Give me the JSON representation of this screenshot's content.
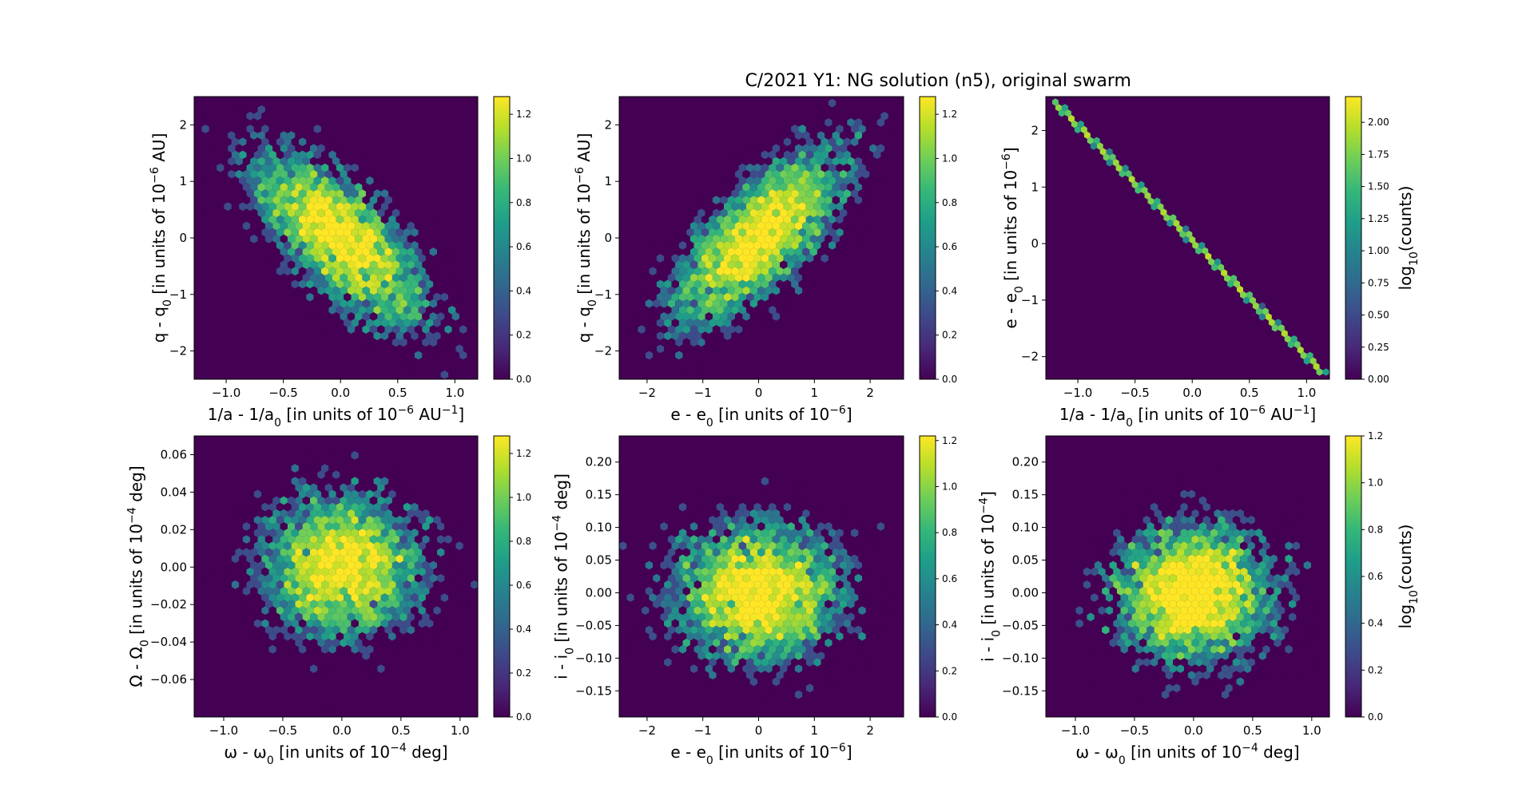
{
  "figure": {
    "title": "C/2021 Y1: NG solution (n5), original swarm",
    "colormap": [
      "#440154",
      "#482878",
      "#3e4989",
      "#31688e",
      "#26828e",
      "#1f9e89",
      "#35b779",
      "#6ece58",
      "#b5de2b",
      "#fde725"
    ],
    "background_color": "#440154",
    "frame_color": "#000000"
  },
  "chart_data": [
    {
      "type": "heatmap",
      "subtype": "hexbin",
      "xlabel": "1/a - 1/a0 [in units of 10^-6 AU^-1]",
      "xlabel_parts": [
        "1/a - 1/a",
        "0",
        " [in units of 10",
        "−6",
        " AU",
        "−1",
        "]"
      ],
      "ylabel_parts": [
        "q - q",
        "0",
        " [in units of 10",
        "−6",
        " AU]"
      ],
      "xlim": [
        -1.28,
        1.2
      ],
      "ylim": [
        -2.5,
        2.5
      ],
      "xticks": [
        -1.0,
        -0.5,
        0.0,
        0.5,
        1.0
      ],
      "xtick_labels": [
        "−1.0",
        "−0.5",
        "0.0",
        "0.5",
        "1.0"
      ],
      "yticks": [
        -2,
        -1,
        0,
        1,
        2
      ],
      "ytick_labels": [
        "−2",
        "−1",
        "0",
        "1",
        "2"
      ],
      "cmax": 1.28,
      "colorbar_ticks": [
        0.0,
        0.2,
        0.4,
        0.6,
        0.8,
        1.0,
        1.2
      ],
      "colorbar_tick_labels": [
        "0.0",
        "0.2",
        "0.4",
        "0.6",
        "0.8",
        "1.0",
        "1.2"
      ],
      "colorbar_label": "",
      "distribution": {
        "sx": 0.4,
        "sy": 0.8,
        "rho": -0.72,
        "n": 4200
      }
    },
    {
      "type": "heatmap",
      "subtype": "hexbin",
      "xlabel": "e - e0 [in units of 10^-6]",
      "xlabel_parts": [
        "e - e",
        "0",
        " [in units of 10",
        "−6",
        "]"
      ],
      "ylabel_parts": [
        "q - q",
        "0",
        " [in units of 10",
        "−6",
        " AU]"
      ],
      "xlim": [
        -2.5,
        2.6
      ],
      "ylim": [
        -2.5,
        2.5
      ],
      "xticks": [
        -2,
        -1,
        0,
        1,
        2
      ],
      "xtick_labels": [
        "−2",
        "−1",
        "0",
        "1",
        "2"
      ],
      "yticks": [
        -2,
        -1,
        0,
        1,
        2
      ],
      "ytick_labels": [
        "−2",
        "−1",
        "0",
        "1",
        "2"
      ],
      "cmax": 1.28,
      "colorbar_ticks": [
        0.0,
        0.2,
        0.4,
        0.6,
        0.8,
        1.0,
        1.2
      ],
      "colorbar_tick_labels": [
        "0.0",
        "0.2",
        "0.4",
        "0.6",
        "0.8",
        "1.0",
        "1.2"
      ],
      "colorbar_label": "",
      "distribution": {
        "sx": 0.8,
        "sy": 0.8,
        "rho": 0.72,
        "n": 4200
      }
    },
    {
      "type": "heatmap",
      "subtype": "hexbin",
      "xlabel": "1/a - 1/a0 [in units of 10^-6 AU^-1]",
      "xlabel_parts": [
        "1/a - 1/a",
        "0",
        " [in units of 10",
        "−6",
        " AU",
        "−1",
        "]"
      ],
      "ylabel_parts": [
        "e - e",
        "0",
        " [in units of 10",
        "−6",
        "]"
      ],
      "xlim": [
        -1.28,
        1.2
      ],
      "ylim": [
        -2.4,
        2.6
      ],
      "xticks": [
        -1.0,
        -0.5,
        0.0,
        0.5,
        1.0
      ],
      "xtick_labels": [
        "−1.0",
        "−0.5",
        "0.0",
        "0.5",
        "1.0"
      ],
      "yticks": [
        -2,
        -1,
        0,
        1,
        2
      ],
      "ytick_labels": [
        "−2",
        "−1",
        "0",
        "1",
        "2"
      ],
      "cmax": 2.2,
      "colorbar_ticks": [
        0.0,
        0.25,
        0.5,
        0.75,
        1.0,
        1.25,
        1.5,
        1.75,
        2.0
      ],
      "colorbar_tick_labels": [
        "0.00",
        "0.25",
        "0.50",
        "0.75",
        "1.00",
        "1.25",
        "1.50",
        "1.75",
        "2.00"
      ],
      "colorbar_label": "log10(counts)",
      "colorbar_label_parts": [
        "log",
        "10",
        "(counts)"
      ],
      "distribution": {
        "line": {
          "x0": -1.2,
          "y0": 2.5,
          "x1": 1.15,
          "y1": -2.3
        },
        "n": 4200
      }
    },
    {
      "type": "heatmap",
      "subtype": "hexbin",
      "xlabel": "ω - ω0 [in units of 10^-4 deg]",
      "xlabel_parts": [
        "ω - ω",
        "0",
        " [in units of 10",
        "−4",
        " deg]"
      ],
      "ylabel_parts": [
        "Ω - Ω",
        "0",
        " [in units of 10",
        "−4",
        " deg]"
      ],
      "xlim": [
        -1.25,
        1.15
      ],
      "ylim": [
        -0.08,
        0.07
      ],
      "xticks": [
        -1.0,
        -0.5,
        0.0,
        0.5,
        1.0
      ],
      "xtick_labels": [
        "−1.0",
        "−0.5",
        "0.0",
        "0.5",
        "1.0"
      ],
      "yticks": [
        -0.06,
        -0.04,
        -0.02,
        0.0,
        0.02,
        0.04,
        0.06
      ],
      "ytick_labels": [
        "−0.06",
        "−0.04",
        "−0.02",
        "0.00",
        "0.02",
        "0.04",
        "0.06"
      ],
      "cmax": 1.28,
      "colorbar_ticks": [
        0.0,
        0.2,
        0.4,
        0.6,
        0.8,
        1.0,
        1.2
      ],
      "colorbar_tick_labels": [
        "0.0",
        "0.2",
        "0.4",
        "0.6",
        "0.8",
        "1.0",
        "1.2"
      ],
      "colorbar_label": "",
      "distribution": {
        "sx": 0.35,
        "sy": 0.02,
        "rho": 0.0,
        "n": 4200
      }
    },
    {
      "type": "heatmap",
      "subtype": "hexbin",
      "xlabel": "e - e0 [in units of 10^-6]",
      "xlabel_parts": [
        "e - e",
        "0",
        " [in units of 10",
        "−6",
        "]"
      ],
      "ylabel_parts": [
        "i - i",
        "0",
        " [in units of 10",
        "−4",
        " deg]"
      ],
      "xlim": [
        -2.5,
        2.6
      ],
      "ylim": [
        -0.19,
        0.24
      ],
      "xticks": [
        -2,
        -1,
        0,
        1,
        2
      ],
      "xtick_labels": [
        "−2",
        "−1",
        "0",
        "1",
        "2"
      ],
      "yticks": [
        -0.15,
        -0.1,
        -0.05,
        0.0,
        0.05,
        0.1,
        0.15,
        0.2
      ],
      "ytick_labels": [
        "−0.15",
        "−0.10",
        "−0.05",
        "0.00",
        "0.05",
        "0.10",
        "0.15",
        "0.20"
      ],
      "cmax": 1.22,
      "colorbar_ticks": [
        0.0,
        0.2,
        0.4,
        0.6,
        0.8,
        1.0,
        1.2
      ],
      "colorbar_tick_labels": [
        "0.0",
        "0.2",
        "0.4",
        "0.6",
        "0.8",
        "1.0",
        "1.2"
      ],
      "colorbar_label": "",
      "distribution": {
        "sx": 0.8,
        "sy": 0.055,
        "rho": 0.0,
        "n": 4200
      }
    },
    {
      "type": "heatmap",
      "subtype": "hexbin",
      "xlabel": "ω - ω0 [in units of 10^-4 deg]",
      "xlabel_parts": [
        "ω - ω",
        "0",
        " [in units of 10",
        "−4",
        " deg]"
      ],
      "ylabel_parts": [
        "i - i",
        "0",
        " [in units of 10",
        "−4",
        "]"
      ],
      "xlim": [
        -1.25,
        1.15
      ],
      "ylim": [
        -0.19,
        0.24
      ],
      "xticks": [
        -1.0,
        -0.5,
        0.0,
        0.5,
        1.0
      ],
      "xtick_labels": [
        "−1.0",
        "−0.5",
        "0.0",
        "0.5",
        "1.0"
      ],
      "yticks": [
        -0.15,
        -0.1,
        -0.05,
        0.0,
        0.05,
        0.1,
        0.15,
        0.2
      ],
      "ytick_labels": [
        "−0.15",
        "−0.10",
        "−0.05",
        "0.00",
        "0.05",
        "0.10",
        "0.15",
        "0.20"
      ],
      "cmax": 1.2,
      "colorbar_ticks": [
        0.0,
        0.2,
        0.4,
        0.6,
        0.8,
        1.0,
        1.2
      ],
      "colorbar_tick_labels": [
        "0.0",
        "0.2",
        "0.4",
        "0.6",
        "0.8",
        "1.0",
        "1.2"
      ],
      "colorbar_label": "log10(counts)",
      "colorbar_label_parts": [
        "log",
        "10",
        "(counts)"
      ],
      "distribution": {
        "sx": 0.35,
        "sy": 0.055,
        "rho": 0.0,
        "n": 4200
      }
    }
  ]
}
